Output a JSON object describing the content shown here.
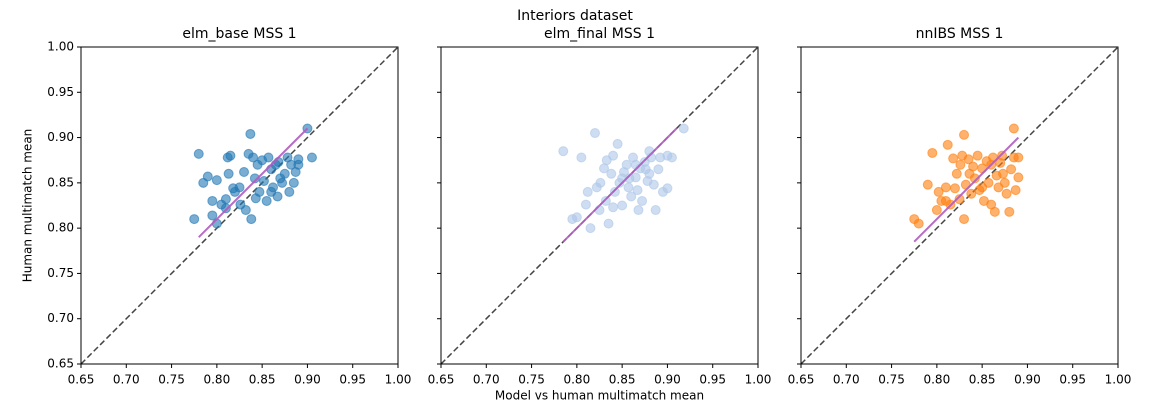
{
  "title": "Interiors dataset",
  "chart_data": [
    {
      "type": "scatter",
      "title": "elm_base MSS 1",
      "ylabel": "Human multimatch mean",
      "color": "#1f77b4",
      "ytick_labels": true,
      "x": [
        0.78,
        0.775,
        0.785,
        0.79,
        0.795,
        0.8,
        0.805,
        0.81,
        0.81,
        0.812,
        0.813,
        0.815,
        0.818,
        0.82,
        0.825,
        0.83,
        0.832,
        0.835,
        0.837,
        0.838,
        0.84,
        0.842,
        0.845,
        0.847,
        0.85,
        0.852,
        0.855,
        0.857,
        0.86,
        0.862,
        0.865,
        0.867,
        0.87,
        0.872,
        0.875,
        0.878,
        0.88,
        0.882,
        0.885,
        0.887,
        0.89,
        0.89,
        0.9,
        0.905,
        0.8,
        0.795,
        0.826,
        0.843,
        0.86,
        0.868
      ],
      "y": [
        0.882,
        0.81,
        0.85,
        0.857,
        0.814,
        0.853,
        0.826,
        0.832,
        0.822,
        0.878,
        0.86,
        0.88,
        0.844,
        0.84,
        0.845,
        0.862,
        0.82,
        0.882,
        0.904,
        0.81,
        0.878,
        0.855,
        0.87,
        0.84,
        0.875,
        0.852,
        0.83,
        0.878,
        0.865,
        0.845,
        0.87,
        0.835,
        0.855,
        0.85,
        0.86,
        0.878,
        0.84,
        0.87,
        0.85,
        0.862,
        0.876,
        0.87,
        0.91,
        0.878,
        0.805,
        0.83,
        0.826,
        0.833,
        0.84,
        0.873
      ],
      "fit": {
        "color": "#b05bc0",
        "x": [
          0.78,
          0.9
        ],
        "y": [
          0.79,
          0.91
        ]
      },
      "xlim": [
        0.65,
        1
      ],
      "ylim": [
        0.65,
        1
      ],
      "xticks": [
        0.65,
        {
          "value": 0.7,
          "label": "0.70"
        },
        0.75,
        {
          "value": 0.8,
          "label": "0.80"
        },
        0.85,
        {
          "value": 0.9,
          "label": "0.90"
        },
        0.95,
        {
          "value": 1,
          "label": "1.00"
        }
      ],
      "yticks": [
        0.65,
        {
          "value": 0.7,
          "label": "0.70"
        },
        0.75,
        {
          "value": 0.8,
          "label": "0.80"
        },
        0.85,
        {
          "value": 0.9,
          "label": "0.90"
        },
        0.95,
        {
          "value": 1,
          "label": "1.00"
        }
      ]
    },
    {
      "type": "scatter",
      "title": "elm_final MSS 1",
      "xlabel": "Model vs human multimatch mean",
      "color": "#aec7e8",
      "ytick_labels": false,
      "x": [
        0.785,
        0.795,
        0.8,
        0.805,
        0.81,
        0.815,
        0.82,
        0.822,
        0.825,
        0.83,
        0.832,
        0.835,
        0.838,
        0.84,
        0.842,
        0.845,
        0.847,
        0.85,
        0.852,
        0.855,
        0.857,
        0.86,
        0.862,
        0.865,
        0.867,
        0.87,
        0.872,
        0.875,
        0.878,
        0.88,
        0.882,
        0.885,
        0.887,
        0.89,
        0.892,
        0.895,
        0.9,
        0.905,
        0.918,
        0.9,
        0.84,
        0.826,
        0.858,
        0.88,
        0.868,
        0.812,
        0.833,
        0.85,
        0.865,
        0.876
      ],
      "y": [
        0.885,
        0.81,
        0.812,
        0.878,
        0.826,
        0.8,
        0.905,
        0.845,
        0.82,
        0.866,
        0.83,
        0.805,
        0.86,
        0.88,
        0.84,
        0.893,
        0.85,
        0.825,
        0.862,
        0.87,
        0.845,
        0.835,
        0.878,
        0.856,
        0.842,
        0.866,
        0.83,
        0.873,
        0.852,
        0.86,
        0.878,
        0.848,
        0.82,
        0.865,
        0.878,
        0.84,
        0.844,
        0.878,
        0.91,
        0.88,
        0.823,
        0.85,
        0.855,
        0.885,
        0.82,
        0.84,
        0.875,
        0.855,
        0.87,
        0.865
      ],
      "fit": {
        "color": "#b05bc0",
        "x": [
          0.785,
          0.91
        ],
        "y": [
          0.785,
          0.91
        ]
      },
      "xlim": [
        0.65,
        1
      ],
      "ylim": [
        0.65,
        1
      ],
      "xticks": [
        0.65,
        {
          "value": 0.7,
          "label": "0.70"
        },
        0.75,
        {
          "value": 0.8,
          "label": "0.80"
        },
        0.85,
        {
          "value": 0.9,
          "label": "0.90"
        },
        0.95,
        {
          "value": 1,
          "label": "1.00"
        }
      ],
      "yticks": [
        0.65,
        0.7,
        0.75,
        0.8,
        0.85,
        0.9,
        0.95,
        1
      ]
    },
    {
      "type": "scatter",
      "title": "nnIBS MSS 1",
      "color": "#ff7f0e",
      "ytick_labels": false,
      "x": [
        0.775,
        0.78,
        0.79,
        0.795,
        0.8,
        0.802,
        0.805,
        0.81,
        0.812,
        0.815,
        0.818,
        0.82,
        0.822,
        0.825,
        0.828,
        0.83,
        0.83,
        0.832,
        0.835,
        0.838,
        0.84,
        0.842,
        0.845,
        0.847,
        0.85,
        0.852,
        0.855,
        0.857,
        0.86,
        0.862,
        0.864,
        0.866,
        0.868,
        0.87,
        0.872,
        0.875,
        0.877,
        0.88,
        0.882,
        0.885,
        0.887,
        0.89,
        0.89,
        0.885,
        0.86,
        0.836,
        0.81,
        0.85,
        0.873,
        0.826
      ],
      "y": [
        0.81,
        0.805,
        0.848,
        0.883,
        0.82,
        0.84,
        0.83,
        0.845,
        0.892,
        0.826,
        0.877,
        0.844,
        0.86,
        0.832,
        0.88,
        0.81,
        0.903,
        0.848,
        0.876,
        0.838,
        0.868,
        0.855,
        0.88,
        0.842,
        0.866,
        0.83,
        0.874,
        0.85,
        0.826,
        0.878,
        0.818,
        0.858,
        0.845,
        0.872,
        0.88,
        0.85,
        0.838,
        0.818,
        0.865,
        0.878,
        0.842,
        0.856,
        0.878,
        0.91,
        0.87,
        0.86,
        0.83,
        0.845,
        0.86,
        0.87
      ],
      "fit": {
        "color": "#b05bc0",
        "x": [
          0.775,
          0.89
        ],
        "y": [
          0.785,
          0.9
        ]
      },
      "xlim": [
        0.65,
        1
      ],
      "ylim": [
        0.65,
        1
      ],
      "xticks": [
        0.65,
        {
          "value": 0.7,
          "label": "0.70"
        },
        0.75,
        {
          "value": 0.8,
          "label": "0.80"
        },
        0.85,
        {
          "value": 0.9,
          "label": "0.90"
        },
        0.95,
        {
          "value": 1,
          "label": "1.00"
        }
      ],
      "yticks": [
        0.65,
        0.7,
        0.75,
        0.8,
        0.85,
        0.9,
        0.95,
        1
      ]
    }
  ]
}
